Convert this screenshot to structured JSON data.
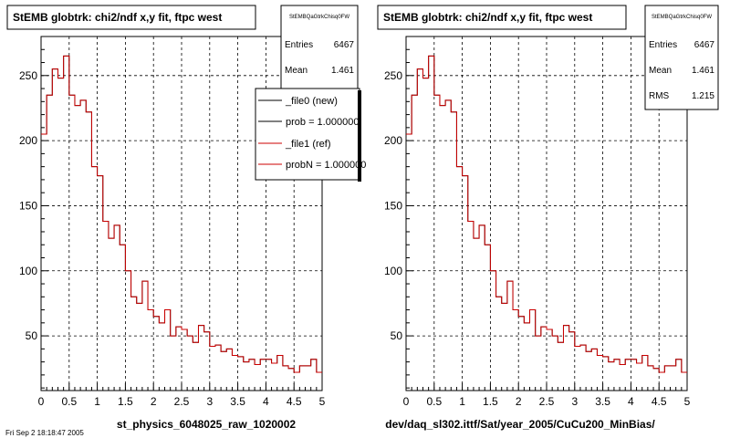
{
  "panels": [
    {
      "title": "StEMB globtrk: chi2/ndf x,y fit, ftpc west",
      "stats": {
        "name": "StEMBQaGtrkChisq0FW",
        "rows": [
          {
            "label": "Entries",
            "value": "6467"
          },
          {
            "label": "Mean",
            "value": "1.461"
          }
        ]
      },
      "legend": [
        {
          "label": "_file0 (new)",
          "color": "#000000"
        },
        {
          "label": "prob = 1.000000",
          "color": "#000000"
        },
        {
          "label": "_file1 (ref)",
          "color": "#cc0000"
        },
        {
          "label": "probN = 1.000000",
          "color": "#cc0000"
        }
      ],
      "footer": "st_physics_6048025_raw_1020002"
    },
    {
      "title": "StEMB globtrk: chi2/ndf x,y fit, ftpc west",
      "stats": {
        "name": "StEMBQaGtrkChisq0FW",
        "rows": [
          {
            "label": "Entries",
            "value": "6467"
          },
          {
            "label": "Mean",
            "value": "1.461"
          },
          {
            "label": "RMS",
            "value": "1.215"
          }
        ]
      },
      "legend": [],
      "footer": "dev/daq_sl302.ittf/Sat/year_2005/CuCu200_MinBias/"
    }
  ],
  "corner_text": "Fri Sep  2 18:18:47 2005",
  "chart_data": {
    "type": "line",
    "subtype": "histogram-step",
    "xlim": [
      0,
      5
    ],
    "ylim": [
      8,
      280
    ],
    "xticks": [
      "0",
      "0.5",
      "1",
      "1.5",
      "2",
      "2.5",
      "3",
      "3.5",
      "4",
      "4.5",
      "5"
    ],
    "yticks": [
      "50",
      "100",
      "150",
      "200",
      "250"
    ],
    "grid": true,
    "bin_width": 0.1,
    "series": [
      {
        "color": "#000000",
        "values": [
          205,
          235,
          255,
          248,
          265,
          235,
          227,
          231,
          222,
          180,
          173,
          138,
          125,
          135,
          120,
          100,
          80,
          75,
          92,
          70,
          65,
          60,
          70,
          50,
          57,
          55,
          50,
          45,
          58,
          53,
          42,
          43,
          38,
          40,
          35,
          34,
          30,
          32,
          28,
          32,
          32,
          29,
          35,
          27,
          25,
          22,
          27,
          27,
          32,
          22
        ]
      },
      {
        "color": "#cc0000",
        "values": [
          205,
          235,
          255,
          248,
          265,
          235,
          227,
          231,
          222,
          180,
          173,
          138,
          125,
          135,
          120,
          100,
          80,
          75,
          92,
          70,
          65,
          60,
          70,
          50,
          57,
          55,
          50,
          45,
          58,
          53,
          42,
          43,
          38,
          40,
          35,
          34,
          30,
          32,
          28,
          32,
          32,
          29,
          35,
          27,
          25,
          22,
          27,
          27,
          32,
          22
        ]
      }
    ]
  }
}
